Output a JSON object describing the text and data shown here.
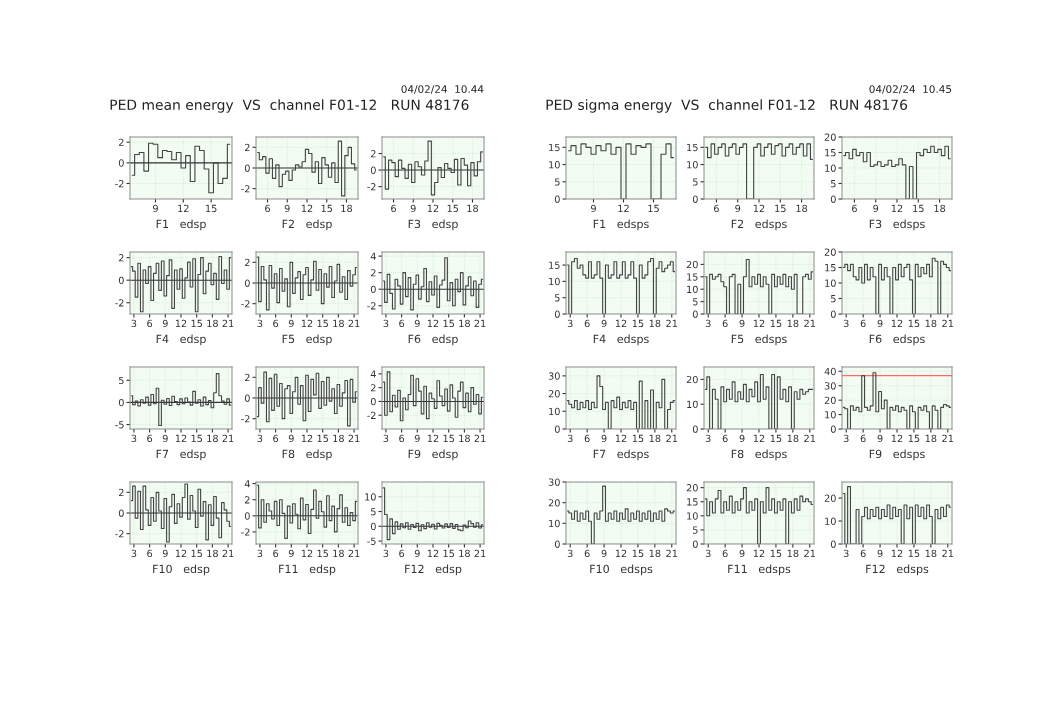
{
  "chart_data": [
    {
      "type": "step",
      "xlabel": "F1   edsp",
      "annotations": [
        "PED mean energy  VS  channel F01-12   RUN 48176",
        "04/02/24  10.44"
      ],
      "color": "#444444",
      "grid": true,
      "ref_lines": [
        {
          "axis": "y",
          "value": 0,
          "color": "#333333"
        }
      ],
      "xlim": [
        6.25,
        17.25
      ],
      "xticks": [
        9,
        12,
        15
      ],
      "ylim": [
        -3.5,
        2.5
      ],
      "yticks": [
        -2,
        0,
        2
      ],
      "x": [
        6.5,
        7,
        7.5,
        8,
        8.5,
        9,
        9.5,
        10,
        10.5,
        11,
        11.5,
        12,
        12.5,
        13,
        13.5,
        14,
        14.5,
        15,
        15.5,
        16,
        16.5,
        17
      ],
      "values": [
        -1.2,
        0.8,
        1.0,
        -0.8,
        1.9,
        1.8,
        0.5,
        1.2,
        1.1,
        0.3,
        1.0,
        -0.5,
        0.7,
        -1.8,
        1.6,
        1.2,
        -0.6,
        -2.9,
        0.0,
        -2.0,
        -1.5,
        1.8
      ]
    },
    {
      "type": "step",
      "xlabel": "F2   edsp",
      "color": "#444444",
      "grid": true,
      "ref_lines": [
        {
          "axis": "y",
          "value": 0,
          "color": "#333333"
        }
      ],
      "xlim": [
        4.25,
        19.75
      ],
      "xticks": [
        6,
        9,
        12,
        15,
        18
      ],
      "ylim": [
        -3,
        3
      ],
      "yticks": [
        -2,
        0,
        2
      ],
      "x": [
        4.5,
        5,
        5.5,
        6,
        6.5,
        7,
        7.5,
        8,
        8.5,
        9,
        9.5,
        10,
        10.5,
        11,
        11.5,
        12,
        12.5,
        13,
        13.5,
        14,
        14.5,
        15,
        15.5,
        16,
        16.5,
        17,
        17.5,
        18,
        18.5,
        19,
        19.5
      ],
      "values": [
        1.5,
        0.8,
        1.1,
        -0.5,
        0.9,
        -1.0,
        0.3,
        -1.8,
        -0.6,
        -0.3,
        -1.2,
        -0.2,
        0.3,
        0.1,
        0.6,
        1.8,
        1.4,
        -0.4,
        0.6,
        -1.5,
        1.0,
        0.3,
        -0.9,
        0.5,
        -1.4,
        2.6,
        -2.7,
        1.2,
        2.0,
        0.4,
        -0.2
      ]
    },
    {
      "type": "step",
      "xlabel": "F3   edsp",
      "color": "#444444",
      "grid": true,
      "ref_lines": [
        {
          "axis": "y",
          "value": 0,
          "color": "#333333"
        }
      ],
      "xlim": [
        4.25,
        19.75
      ],
      "xticks": [
        6,
        9,
        12,
        15,
        18
      ],
      "ylim": [
        -3.5,
        4
      ],
      "yticks": [
        -2,
        0,
        2
      ],
      "x": [
        4.5,
        5,
        5.5,
        6,
        6.5,
        7,
        7.5,
        8,
        8.5,
        9,
        9.5,
        10,
        10.5,
        11,
        11.5,
        12,
        12.5,
        13,
        13.5,
        14,
        14.5,
        15,
        15.5,
        16,
        16.5,
        17,
        17.5,
        18,
        18.5,
        19,
        19.5
      ],
      "values": [
        1.6,
        -2.3,
        1.2,
        0.9,
        -0.8,
        1.2,
        0.2,
        -1.0,
        0.7,
        -1.5,
        1.0,
        0.4,
        -0.6,
        1.1,
        3.5,
        -3.0,
        -1.5,
        0.3,
        -0.9,
        0.8,
        0.2,
        -0.3,
        1.3,
        -1.8,
        1.4,
        0.6,
        -1.9,
        0.9,
        -0.7,
        1.0,
        2.2
      ]
    },
    {
      "type": "step",
      "xlabel": "F4   edsp",
      "color": "#444444",
      "grid": true,
      "ref_lines": [
        {
          "axis": "y",
          "value": 0,
          "color": "#333333"
        }
      ],
      "xlim": [
        2.25,
        21.75
      ],
      "xticks": [
        3,
        6,
        9,
        12,
        15,
        18,
        21
      ],
      "ylim": [
        -3,
        2.5
      ],
      "yticks": [
        -2,
        0,
        2
      ],
      "x": [
        2.5,
        3,
        3.5,
        4,
        4.5,
        5,
        5.5,
        6,
        6.5,
        7,
        7.5,
        8,
        8.5,
        9,
        9.5,
        10,
        10.5,
        11,
        11.5,
        12,
        12.5,
        13,
        13.5,
        14,
        14.5,
        15,
        15.5,
        16,
        16.5,
        17,
        17.5,
        18,
        18.5,
        19,
        19.5,
        20,
        20.5,
        21,
        21.5
      ],
      "values": [
        1.2,
        0.8,
        -1.5,
        1.5,
        -2.8,
        0.9,
        -0.3,
        1.2,
        -1.8,
        0.6,
        1.5,
        -0.9,
        1.7,
        -1.4,
        0.4,
        1.8,
        -2.5,
        0.9,
        -0.8,
        1.0,
        -1.6,
        0.2,
        1.6,
        -0.6,
        1.9,
        -2.8,
        0.5,
        2.0,
        -1.2,
        0.8,
        1.5,
        -0.4,
        0.6,
        -1.7,
        2.1,
        -0.3,
        0.9,
        -0.8,
        2.0
      ]
    },
    {
      "type": "step",
      "xlabel": "F5   edsp",
      "color": "#444444",
      "grid": true,
      "ref_lines": [
        {
          "axis": "y",
          "value": 0,
          "color": "#333333"
        }
      ],
      "xlim": [
        2.25,
        21.75
      ],
      "xticks": [
        3,
        6,
        9,
        12,
        15,
        18,
        21
      ],
      "ylim": [
        -3,
        3
      ],
      "yticks": [
        -2,
        0,
        2
      ],
      "x": [
        2.5,
        3,
        3.5,
        4,
        4.5,
        5,
        5.5,
        6,
        6.5,
        7,
        7.5,
        8,
        8.5,
        9,
        9.5,
        10,
        10.5,
        11,
        11.5,
        12,
        12.5,
        13,
        13.5,
        14,
        14.5,
        15,
        15.5,
        16,
        16.5,
        17,
        17.5,
        18,
        18.5,
        19,
        19.5,
        20,
        20.5,
        21,
        21.5
      ],
      "values": [
        2.5,
        -1.8,
        1.6,
        0.3,
        -2.6,
        1.7,
        -0.5,
        0.9,
        -1.9,
        1.4,
        -0.8,
        0.4,
        -2.3,
        2.0,
        -1.0,
        0.5,
        1.1,
        -1.6,
        0.8,
        1.5,
        -1.2,
        0.3,
        2.1,
        -0.7,
        1.3,
        -2.0,
        0.9,
        -0.4,
        1.6,
        -1.4,
        0.2,
        1.8,
        -0.9,
        0.6,
        -1.6,
        1.2,
        -0.3,
        0.8,
        1.5
      ]
    },
    {
      "type": "step",
      "xlabel": "F6   edsp",
      "color": "#444444",
      "grid": true,
      "ref_lines": [
        {
          "axis": "y",
          "value": 0,
          "color": "#333333"
        }
      ],
      "xlim": [
        2.25,
        21.75
      ],
      "xticks": [
        3,
        6,
        9,
        12,
        15,
        18,
        21
      ],
      "ylim": [
        -3,
        4.5
      ],
      "yticks": [
        -2,
        0,
        2,
        4
      ],
      "x": [
        2.5,
        3,
        3.5,
        4,
        4.5,
        5,
        5.5,
        6,
        6.5,
        7,
        7.5,
        8,
        8.5,
        9,
        9.5,
        10,
        10.5,
        11,
        11.5,
        12,
        12.5,
        13,
        13.5,
        14,
        14.5,
        15,
        15.5,
        16,
        16.5,
        17,
        17.5,
        18,
        18.5,
        19,
        19.5,
        20,
        20.5,
        21,
        21.5
      ],
      "values": [
        1.0,
        -1.6,
        1.8,
        -0.5,
        -2.4,
        1.2,
        0.4,
        -1.8,
        2.0,
        -0.9,
        1.4,
        -2.5,
        0.6,
        1.7,
        -1.2,
        0.3,
        2.5,
        -1.5,
        0.9,
        -0.7,
        1.6,
        -2.2,
        0.5,
        1.1,
        3.8,
        -1.4,
        0.8,
        -2.0,
        1.2,
        -0.3,
        2.0,
        -1.9,
        0.4,
        1.5,
        -0.8,
        1.0,
        -2.2,
        0.6,
        1.2
      ]
    },
    {
      "type": "step",
      "xlabel": "F7   edsp",
      "color": "#444444",
      "grid": true,
      "ref_lines": [
        {
          "axis": "y",
          "value": 0,
          "color": "#333333"
        }
      ],
      "xlim": [
        2.25,
        21.75
      ],
      "xticks": [
        3,
        6,
        9,
        12,
        15,
        18,
        21
      ],
      "ylim": [
        -6,
        8
      ],
      "yticks": [
        -5,
        0,
        5
      ],
      "x": [
        2.5,
        3,
        3.5,
        4,
        4.5,
        5,
        5.5,
        6,
        6.5,
        7,
        7.5,
        8,
        8.5,
        9,
        9.5,
        10,
        10.5,
        11,
        11.5,
        12,
        12.5,
        13,
        13.5,
        14,
        14.5,
        15,
        15.5,
        16,
        16.5,
        17,
        17.5,
        18,
        18.5,
        19,
        19.5,
        20,
        20.5,
        21,
        21.5
      ],
      "values": [
        1.5,
        -0.5,
        0.3,
        -0.8,
        0.6,
        -0.2,
        1.2,
        -0.6,
        1.8,
        -0.3,
        3.2,
        -5.2,
        0.5,
        -0.4,
        0.9,
        -0.7,
        1.4,
        0.2,
        -0.5,
        0.8,
        -0.3,
        1.0,
        0.1,
        -0.6,
        2.5,
        -0.2,
        0.6,
        -0.8,
        1.2,
        -0.5,
        0.4,
        -1.2,
        2.2,
        6.5,
        1.5,
        0.3,
        -0.4,
        0.8,
        -0.6
      ]
    },
    {
      "type": "step",
      "xlabel": "F8   edsp",
      "color": "#444444",
      "grid": true,
      "ref_lines": [
        {
          "axis": "y",
          "value": 0,
          "color": "#333333"
        }
      ],
      "xlim": [
        2.25,
        21.75
      ],
      "xticks": [
        3,
        6,
        9,
        12,
        15,
        18,
        21
      ],
      "ylim": [
        -3,
        3
      ],
      "yticks": [
        -2,
        0,
        2
      ],
      "x": [
        2.5,
        3,
        3.5,
        4,
        4.5,
        5,
        5.5,
        6,
        6.5,
        7,
        7.5,
        8,
        8.5,
        9,
        9.5,
        10,
        10.5,
        11,
        11.5,
        12,
        12.5,
        13,
        13.5,
        14,
        14.5,
        15,
        15.5,
        16,
        16.5,
        17,
        17.5,
        18,
        18.5,
        19,
        19.5,
        20,
        20.5,
        21,
        21.5
      ],
      "values": [
        -1.8,
        1.0,
        -0.5,
        2.5,
        -2.3,
        1.9,
        -1.2,
        2.3,
        -0.8,
        1.4,
        -2.0,
        0.9,
        1.2,
        -1.5,
        0.6,
        2.0,
        -0.6,
        1.2,
        -2.2,
        2.2,
        -1.3,
        1.8,
        0.3,
        2.4,
        -1.0,
        1.6,
        -0.7,
        2.0,
        -0.3,
        0.9,
        -1.5,
        1.3,
        -0.8,
        0.5,
        1.7,
        -2.7,
        1.8,
        -0.4,
        0.6
      ]
    },
    {
      "type": "step",
      "xlabel": "F9   edsp",
      "color": "#444444",
      "grid": true,
      "ref_lines": [
        {
          "axis": "y",
          "value": 0,
          "color": "#333333"
        }
      ],
      "xlim": [
        2.25,
        21.75
      ],
      "xticks": [
        3,
        6,
        9,
        12,
        15,
        18,
        21
      ],
      "ylim": [
        -4,
        5
      ],
      "yticks": [
        -2,
        0,
        2,
        4
      ],
      "x": [
        2.5,
        3,
        3.5,
        4,
        4.5,
        5,
        5.5,
        6,
        6.5,
        7,
        7.5,
        8,
        8.5,
        9,
        9.5,
        10,
        10.5,
        11,
        11.5,
        12,
        12.5,
        13,
        13.5,
        14,
        14.5,
        15,
        15.5,
        16,
        16.5,
        17,
        17.5,
        18,
        18.5,
        19,
        19.5,
        20,
        20.5,
        21,
        21.5
      ],
      "values": [
        2.8,
        -2.0,
        4.3,
        -1.5,
        0.9,
        -0.8,
        1.6,
        -2.8,
        0.5,
        -1.2,
        1.0,
        3.8,
        -0.6,
        3.3,
        1.5,
        -1.8,
        2.2,
        -2.5,
        1.2,
        0.4,
        -1.0,
        3.0,
        0.8,
        -0.6,
        1.8,
        -1.4,
        2.4,
        0.5,
        -2.3,
        1.5,
        2.8,
        -0.9,
        1.2,
        -1.5,
        2.0,
        -0.4,
        1.0,
        -1.8,
        0.6
      ]
    },
    {
      "type": "step",
      "xlabel": "F10   edsp",
      "color": "#444444",
      "grid": true,
      "ref_lines": [
        {
          "axis": "y",
          "value": 0,
          "color": "#333333"
        }
      ],
      "xlim": [
        2.25,
        21.75
      ],
      "xticks": [
        3,
        6,
        9,
        12,
        15,
        18,
        21
      ],
      "ylim": [
        -3,
        3
      ],
      "yticks": [
        -2,
        0,
        2
      ],
      "x": [
        2.5,
        3,
        3.5,
        4,
        4.5,
        5,
        5.5,
        6,
        6.5,
        7,
        7.5,
        8,
        8.5,
        9,
        9.5,
        10,
        10.5,
        11,
        11.5,
        12,
        12.5,
        13,
        13.5,
        14,
        14.5,
        15,
        15.5,
        16,
        16.5,
        17,
        17.5,
        18,
        18.5,
        19,
        19.5,
        20,
        20.5,
        21,
        21.5
      ],
      "values": [
        1.2,
        2.6,
        -0.5,
        2.1,
        -1.6,
        2.6,
        0.3,
        -1.2,
        1.5,
        -0.8,
        2.0,
        0.2,
        -1.5,
        1.4,
        -2.8,
        0.6,
        1.8,
        -1.0,
        0.9,
        -0.4,
        1.5,
        2.8,
        -0.6,
        1.7,
        0.2,
        -1.4,
        2.3,
        -0.3,
        1.1,
        -2.6,
        0.8,
        -1.2,
        1.6,
        -0.5,
        -2.4,
        1.0,
        0.3,
        -0.8,
        -1.3
      ]
    },
    {
      "type": "step",
      "xlabel": "F11   edsp",
      "color": "#444444",
      "grid": true,
      "ref_lines": [
        {
          "axis": "y",
          "value": 0,
          "color": "#333333"
        }
      ],
      "xlim": [
        2.25,
        21.75
      ],
      "xticks": [
        3,
        6,
        9,
        12,
        15,
        18,
        21
      ],
      "ylim": [
        -3.5,
        4.2
      ],
      "yticks": [
        -2,
        0,
        2,
        4
      ],
      "x": [
        2.5,
        3,
        3.5,
        4,
        4.5,
        5,
        5.5,
        6,
        6.5,
        7,
        7.5,
        8,
        8.5,
        9,
        9.5,
        10,
        10.5,
        11,
        11.5,
        12,
        12.5,
        13,
        13.5,
        14,
        14.5,
        15,
        15.5,
        16,
        16.5,
        17,
        17.5,
        18,
        18.5,
        19,
        19.5,
        20,
        20.5,
        21,
        21.5
      ],
      "values": [
        3.8,
        -1.5,
        2.0,
        -0.8,
        1.5,
        0.6,
        -0.4,
        1.8,
        -1.2,
        2.0,
        0.3,
        -2.8,
        1.2,
        -0.9,
        1.5,
        0.2,
        -1.6,
        2.2,
        -0.5,
        1.4,
        -2.2,
        0.8,
        3.2,
        -0.3,
        1.8,
        0.5,
        -1.4,
        2.5,
        -0.6,
        1.2,
        -2.0,
        0.9,
        2.6,
        -0.8,
        1.0,
        -1.2,
        0.4,
        -0.6,
        1.8
      ]
    },
    {
      "type": "step",
      "xlabel": "F12   edsp",
      "color": "#444444",
      "grid": true,
      "ref_lines": [
        {
          "axis": "y",
          "value": 0,
          "color": "#333333"
        }
      ],
      "xlim": [
        2.25,
        21.75
      ],
      "xticks": [
        3,
        6,
        9,
        12,
        15,
        18,
        21
      ],
      "ylim": [
        -6,
        15
      ],
      "yticks": [
        -5,
        0,
        5,
        10
      ],
      "x": [
        2.5,
        3,
        3.5,
        4,
        4.5,
        5,
        5.5,
        6,
        6.5,
        7,
        7.5,
        8,
        8.5,
        9,
        9.5,
        10,
        10.5,
        11,
        11.5,
        12,
        12.5,
        13,
        13.5,
        14,
        14.5,
        15,
        15.5,
        16,
        16.5,
        17,
        17.5,
        18,
        18.5,
        19,
        19.5,
        20,
        20.5,
        21,
        21.5
      ],
      "values": [
        13.0,
        4.0,
        -4.5,
        2.5,
        -2.5,
        1.5,
        -1.0,
        0.8,
        -0.5,
        1.2,
        -1.0,
        0.6,
        -0.4,
        1.0,
        -1.5,
        0.5,
        -0.8,
        1.2,
        -0.3,
        0.7,
        -0.9,
        1.0,
        0.3,
        -0.6,
        0.8,
        -0.4,
        0.9,
        -0.7,
        0.6,
        -1.2,
        -1.5,
        0.4,
        -0.5,
        1.8,
        0.9,
        -0.3,
        1.2,
        -0.6,
        0.5
      ]
    },
    {
      "type": "step",
      "xlabel": "F1   edsps",
      "annotations": [
        "PED sigma energy  VS  channel F01-12   RUN 48176",
        "04/02/24  10.45"
      ],
      "color": "#444444",
      "grid": true,
      "xlim": [
        6.25,
        17.25
      ],
      "xticks": [
        9,
        12,
        15
      ],
      "ylim": [
        0,
        18
      ],
      "yticks": [
        0,
        5,
        10,
        15
      ],
      "x": [
        6.5,
        7,
        7.5,
        8,
        8.5,
        9,
        9.5,
        10,
        10.5,
        11,
        11.5,
        12,
        12.5,
        13,
        13.5,
        14,
        14.5,
        15,
        15.5,
        16,
        16.5,
        17
      ],
      "values": [
        14,
        15.5,
        13,
        16,
        15,
        13,
        15.5,
        14,
        16,
        13,
        15,
        0,
        16,
        13,
        15.5,
        15,
        16,
        0,
        0,
        13,
        16,
        12
      ]
    },
    {
      "type": "step",
      "xlabel": "F2   edsps",
      "color": "#444444",
      "grid": true,
      "xlim": [
        4.25,
        19.75
      ],
      "xticks": [
        6,
        9,
        12,
        15,
        18
      ],
      "ylim": [
        0,
        18
      ],
      "yticks": [
        0,
        5,
        10,
        15
      ],
      "x": [
        4.5,
        5,
        5.5,
        6,
        6.5,
        7,
        7.5,
        8,
        8.5,
        9,
        9.5,
        10,
        10.5,
        11,
        11.5,
        12,
        12.5,
        13,
        13.5,
        14,
        14.5,
        15,
        15.5,
        16,
        16.5,
        17,
        17.5,
        18,
        18.5,
        19,
        19.5
      ],
      "values": [
        15,
        12,
        16,
        13,
        15,
        16,
        12.5,
        15,
        16,
        13,
        15,
        16,
        0,
        0,
        15,
        16,
        12.5,
        15,
        16,
        13,
        15.5,
        16,
        12.5,
        15,
        16,
        13,
        15,
        16,
        12.5,
        16,
        11.5
      ]
    },
    {
      "type": "step",
      "xlabel": "F3   edsps",
      "color": "#444444",
      "grid": true,
      "xlim": [
        4.25,
        19.75
      ],
      "xticks": [
        6,
        9,
        12,
        15,
        18
      ],
      "ylim": [
        0,
        20
      ],
      "yticks": [
        0,
        5,
        10,
        15,
        20
      ],
      "x": [
        4.5,
        5,
        5.5,
        6,
        6.5,
        7,
        7.5,
        8,
        8.5,
        9,
        9.5,
        10,
        10.5,
        11,
        11.5,
        12,
        12.5,
        13,
        13.5,
        14,
        14.5,
        15,
        15.5,
        16,
        16.5,
        17,
        17.5,
        18,
        18.5,
        19,
        19.5
      ],
      "values": [
        14,
        15,
        13,
        16,
        14,
        15,
        12,
        15,
        10.5,
        11,
        12,
        10.5,
        11,
        12.5,
        10.5,
        11,
        13,
        11,
        0,
        10.5,
        0,
        15,
        14,
        16,
        15,
        17,
        15,
        16,
        14,
        17,
        13
      ]
    },
    {
      "type": "step",
      "xlabel": "F4   edsps",
      "color": "#444444",
      "grid": true,
      "xlim": [
        2.25,
        21.75
      ],
      "xticks": [
        3,
        6,
        9,
        12,
        15,
        18,
        21
      ],
      "ylim": [
        0,
        19
      ],
      "yticks": [
        0,
        5,
        10,
        15
      ],
      "x": [
        2.5,
        3,
        3.5,
        4,
        4.5,
        5,
        5.5,
        6,
        6.5,
        7,
        7.5,
        8,
        8.5,
        9,
        9.5,
        10,
        10.5,
        11,
        11.5,
        12,
        12.5,
        13,
        13.5,
        14,
        14.5,
        15,
        15.5,
        16,
        16.5,
        17,
        17.5,
        18,
        18.5,
        19,
        19.5,
        20,
        20.5,
        21,
        21.5
      ],
      "values": [
        15,
        0,
        16,
        17,
        14,
        15,
        12,
        11,
        16,
        11,
        12,
        16,
        11,
        0,
        15,
        11,
        12,
        16,
        11,
        12,
        16,
        11,
        12,
        16,
        11,
        0,
        15,
        11,
        12,
        16,
        17,
        0,
        14,
        16,
        13,
        14,
        15,
        16,
        13
      ]
    },
    {
      "type": "step",
      "xlabel": "F5   edsps",
      "color": "#444444",
      "grid": true,
      "xlim": [
        2.25,
        21.75
      ],
      "xticks": [
        3,
        6,
        9,
        12,
        15,
        18,
        21
      ],
      "ylim": [
        0,
        25
      ],
      "yticks": [
        0,
        5,
        10,
        15,
        20
      ],
      "x": [
        2.5,
        3,
        3.5,
        4,
        4.5,
        5,
        5.5,
        6,
        6.5,
        7,
        7.5,
        8,
        8.5,
        9,
        9.5,
        10,
        10.5,
        11,
        11.5,
        12,
        12.5,
        13,
        13.5,
        14,
        14.5,
        15,
        15.5,
        16,
        16.5,
        17,
        17.5,
        18,
        18.5,
        19,
        19.5,
        20,
        20.5,
        21,
        21.5
      ],
      "values": [
        15,
        0,
        16,
        14,
        15,
        16,
        13,
        11,
        0,
        15,
        16,
        0,
        12,
        0,
        15,
        22,
        11,
        15,
        12,
        16,
        11,
        15,
        12,
        0,
        16,
        11,
        15,
        12,
        16,
        11,
        15,
        10,
        16,
        0,
        0,
        15,
        16,
        14,
        17
      ]
    },
    {
      "type": "step",
      "xlabel": "F6   edsps",
      "color": "#444444",
      "grid": true,
      "xlim": [
        2.25,
        21.75
      ],
      "xticks": [
        3,
        6,
        9,
        12,
        15,
        18,
        21
      ],
      "ylim": [
        0,
        20
      ],
      "yticks": [
        0,
        5,
        10,
        15,
        20
      ],
      "x": [
        2.5,
        3,
        3.5,
        4,
        4.5,
        5,
        5.5,
        6,
        6.5,
        7,
        7.5,
        8,
        8.5,
        9,
        9.5,
        10,
        10.5,
        11,
        11.5,
        12,
        12.5,
        13,
        13.5,
        14,
        14.5,
        15,
        15.5,
        16,
        16.5,
        17,
        17.5,
        18,
        18.5,
        19,
        19.5,
        20,
        20.5,
        21,
        21.5
      ],
      "values": [
        15,
        16,
        14,
        16,
        12,
        11,
        15,
        10,
        16,
        11,
        15,
        12,
        0,
        16,
        11,
        15,
        12,
        0,
        15,
        11,
        16,
        12,
        15,
        16,
        11,
        0,
        16,
        12,
        15,
        13,
        16,
        12,
        18,
        17,
        0,
        17,
        16,
        15,
        14
      ]
    },
    {
      "type": "step",
      "xlabel": "F7   edsps",
      "color": "#444444",
      "grid": true,
      "xlim": [
        2.25,
        21.75
      ],
      "xticks": [
        3,
        6,
        9,
        12,
        15,
        18,
        21
      ],
      "ylim": [
        0,
        35
      ],
      "yticks": [
        0,
        10,
        20,
        30
      ],
      "x": [
        2.5,
        3,
        3.5,
        4,
        4.5,
        5,
        5.5,
        6,
        6.5,
        7,
        7.5,
        8,
        8.5,
        9,
        9.5,
        10,
        10.5,
        11,
        11.5,
        12,
        12.5,
        13,
        13.5,
        14,
        14.5,
        15,
        15.5,
        16,
        16.5,
        17,
        17.5,
        18,
        18.5,
        19,
        19.5,
        20,
        20.5,
        21,
        21.5
      ],
      "values": [
        16,
        14,
        12,
        16,
        11,
        15,
        12,
        16,
        11,
        15,
        12,
        30,
        24,
        11,
        15,
        0,
        16,
        12,
        18,
        11,
        15,
        12,
        16,
        11,
        15,
        0,
        27,
        0,
        16,
        0,
        22,
        0,
        15,
        12,
        28,
        0,
        11,
        15,
        16
      ]
    },
    {
      "type": "step",
      "xlabel": "F8   edsps",
      "color": "#444444",
      "grid": true,
      "xlim": [
        2.25,
        21.75
      ],
      "xticks": [
        3,
        6,
        9,
        12,
        15,
        18,
        21
      ],
      "ylim": [
        0,
        25
      ],
      "yticks": [
        0,
        10,
        20
      ],
      "x": [
        2.5,
        3,
        3.5,
        4,
        4.5,
        5,
        5.5,
        6,
        6.5,
        7,
        7.5,
        8,
        8.5,
        9,
        9.5,
        10,
        10.5,
        11,
        11.5,
        12,
        12.5,
        13,
        13.5,
        14,
        14.5,
        15,
        15.5,
        16,
        16.5,
        17,
        17.5,
        18,
        18.5,
        19,
        19.5,
        20,
        20.5,
        21,
        21.5
      ],
      "values": [
        16,
        21,
        0,
        16,
        12,
        0,
        17,
        11,
        16,
        12,
        19,
        11,
        15,
        12,
        18,
        11,
        16,
        13,
        19,
        11,
        22,
        12,
        17,
        0,
        22,
        0,
        21,
        12,
        16,
        11,
        17,
        0,
        15,
        12,
        16,
        14,
        15,
        16,
        16
      ]
    },
    {
      "type": "step",
      "xlabel": "F9   edsps",
      "color": "#444444",
      "grid": true,
      "ref_lines": [
        {
          "axis": "y",
          "value": 37,
          "color": "#ff6666"
        }
      ],
      "xlim": [
        2.25,
        21.75
      ],
      "xticks": [
        3,
        6,
        9,
        12,
        15,
        18,
        21
      ],
      "ylim": [
        0,
        43
      ],
      "yticks": [
        0,
        10,
        20,
        30,
        40
      ],
      "x": [
        2.5,
        3,
        3.5,
        4,
        4.5,
        5,
        5.5,
        6,
        6.5,
        7,
        7.5,
        8,
        8.5,
        9,
        9.5,
        10,
        10.5,
        11,
        11.5,
        12,
        12.5,
        13,
        13.5,
        14,
        14.5,
        15,
        15.5,
        16,
        16.5,
        17,
        17.5,
        18,
        18.5,
        19,
        19.5,
        20,
        20.5,
        21,
        21.5
      ],
      "values": [
        15,
        14,
        0,
        16,
        13,
        15,
        12,
        37,
        15,
        13,
        16,
        39,
        12,
        26,
        14,
        20,
        0,
        15,
        13,
        16,
        12,
        15,
        13,
        0,
        16,
        12,
        0,
        15,
        13,
        16,
        12,
        0,
        16,
        13,
        0,
        15,
        17,
        16,
        15
      ]
    },
    {
      "type": "step",
      "xlabel": "F10   edsps",
      "color": "#444444",
      "grid": true,
      "xlim": [
        2.25,
        21.75
      ],
      "xticks": [
        3,
        6,
        9,
        12,
        15,
        18,
        21
      ],
      "ylim": [
        0,
        30
      ],
      "yticks": [
        0,
        10,
        20,
        30
      ],
      "x": [
        2.5,
        3,
        3.5,
        4,
        4.5,
        5,
        5.5,
        6,
        6.5,
        7,
        7.5,
        8,
        8.5,
        9,
        9.5,
        10,
        10.5,
        11,
        11.5,
        12,
        12.5,
        13,
        13.5,
        14,
        14.5,
        15,
        15.5,
        16,
        16.5,
        17,
        17.5,
        18,
        18.5,
        19,
        19.5,
        20,
        20.5,
        21,
        21.5
      ],
      "values": [
        16,
        15,
        12,
        16,
        11,
        15,
        12,
        16,
        11,
        0,
        15,
        12,
        16,
        28,
        11,
        15,
        12,
        16,
        11,
        15,
        12,
        17,
        11,
        15,
        12,
        16,
        11,
        15,
        12,
        16,
        11,
        15,
        12,
        16,
        11,
        17,
        16,
        15,
        16
      ]
    },
    {
      "type": "step",
      "xlabel": "F11   edsps",
      "color": "#444444",
      "grid": true,
      "xlim": [
        2.25,
        21.75
      ],
      "xticks": [
        3,
        6,
        9,
        12,
        15,
        18,
        21
      ],
      "ylim": [
        0,
        22
      ],
      "yticks": [
        0,
        5,
        10,
        15,
        20
      ],
      "x": [
        2.5,
        3,
        3.5,
        4,
        4.5,
        5,
        5.5,
        6,
        6.5,
        7,
        7.5,
        8,
        8.5,
        9,
        9.5,
        10,
        10.5,
        11,
        11.5,
        12,
        12.5,
        13,
        13.5,
        14,
        14.5,
        15,
        15.5,
        16,
        16.5,
        17,
        17.5,
        18,
        18.5,
        19,
        19.5,
        20,
        20.5,
        21,
        21.5
      ],
      "values": [
        16,
        10,
        15,
        11,
        16,
        19,
        11,
        15,
        12,
        17,
        11,
        15,
        12,
        16,
        20,
        11,
        15,
        12,
        16,
        0,
        15,
        11,
        20,
        12,
        16,
        11,
        15,
        12,
        16,
        0,
        15,
        11,
        16,
        12,
        17,
        15,
        16,
        15,
        14
      ]
    },
    {
      "type": "step",
      "xlabel": "F12   edsps",
      "color": "#444444",
      "grid": true,
      "xlim": [
        2.25,
        21.75
      ],
      "xticks": [
        3,
        6,
        9,
        12,
        15,
        18,
        21
      ],
      "ylim": [
        0,
        27
      ],
      "yticks": [
        0,
        10,
        20
      ],
      "x": [
        2.5,
        3,
        3.5,
        4,
        4.5,
        5,
        5.5,
        6,
        6.5,
        7,
        7.5,
        8,
        8.5,
        9,
        9.5,
        10,
        10.5,
        11,
        11.5,
        12,
        12.5,
        13,
        13.5,
        14,
        14.5,
        15,
        15.5,
        16,
        16.5,
        17,
        17.5,
        18,
        18.5,
        19,
        19.5,
        20,
        20.5,
        21,
        21.5
      ],
      "values": [
        22,
        0,
        25,
        0,
        0,
        15,
        0,
        12,
        16,
        11,
        15,
        12,
        16,
        11,
        15,
        12,
        17,
        11,
        16,
        12,
        15,
        0,
        17,
        11,
        16,
        0,
        17,
        12,
        16,
        11,
        17,
        12,
        0,
        15,
        11,
        16,
        12,
        17,
        16
      ]
    }
  ]
}
